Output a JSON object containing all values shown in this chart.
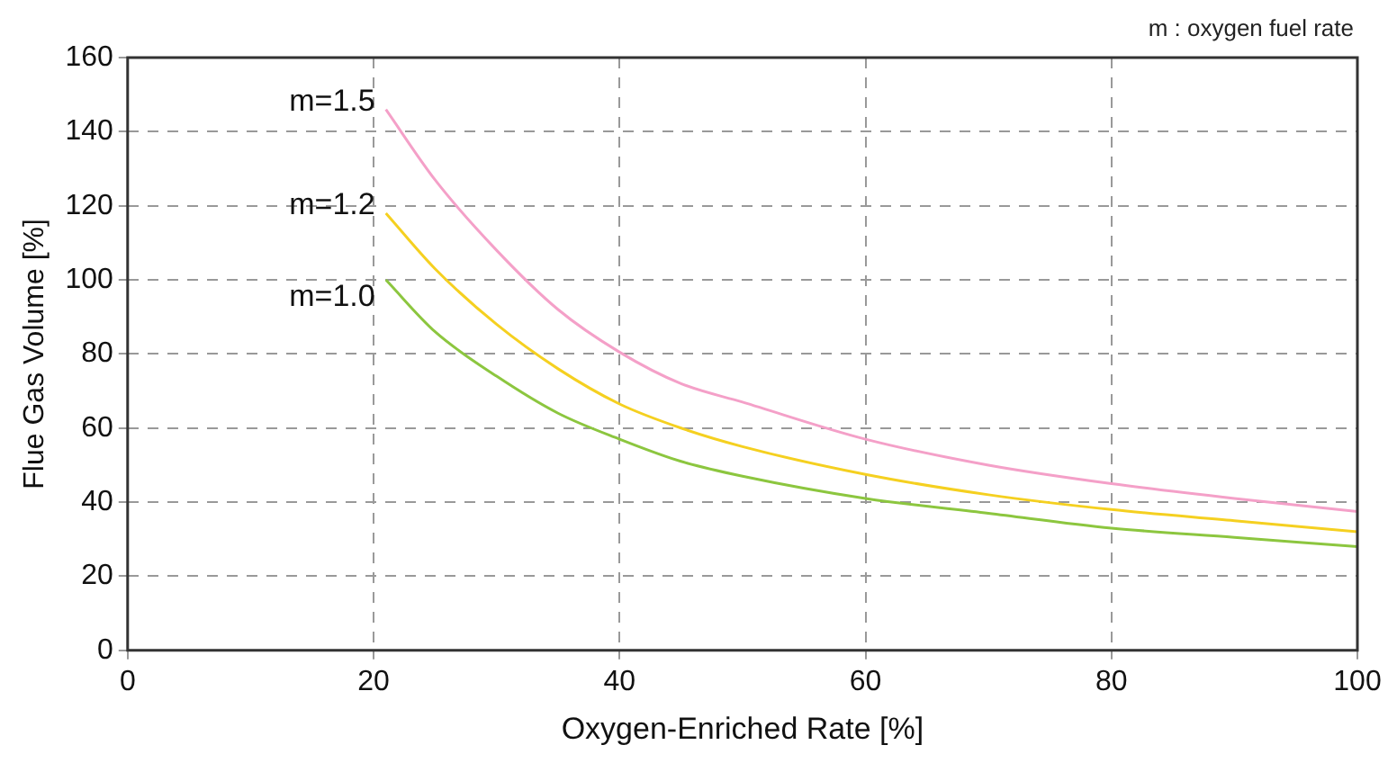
{
  "chart_data": {
    "type": "line",
    "xlabel": "Oxygen-Enriched Rate [%]",
    "ylabel": "Flue Gas Volume [%]",
    "annotations": [
      "m : oxygen fuel rate"
    ],
    "x": [
      21,
      25,
      30,
      35,
      40,
      45,
      50,
      60,
      70,
      80,
      90,
      100
    ],
    "series": [
      {
        "name": "m=1.5",
        "color": "#f4a0c8",
        "values": [
          146,
          127,
          108,
          92,
          80.5,
          72,
          67,
          57,
          50,
          45,
          41,
          37.5
        ]
      },
      {
        "name": "m=1.2",
        "color": "#f5d020",
        "values": [
          118,
          103,
          88,
          76,
          66.5,
          60,
          55,
          47.5,
          42,
          38,
          35,
          32
        ]
      },
      {
        "name": "m=1.0",
        "color": "#8cc63f",
        "values": [
          100,
          86,
          74,
          64,
          57,
          51,
          47,
          41,
          37,
          33,
          30.5,
          28
        ]
      }
    ],
    "xlim": [
      0,
      100
    ],
    "xticks": [
      0,
      20,
      40,
      60,
      80,
      100
    ],
    "ylim": [
      0,
      160
    ],
    "yticks": [
      0,
      20,
      40,
      60,
      80,
      100,
      120,
      140,
      160
    ],
    "grid": true,
    "legend": false,
    "marker": "none",
    "line_style": "solid"
  }
}
